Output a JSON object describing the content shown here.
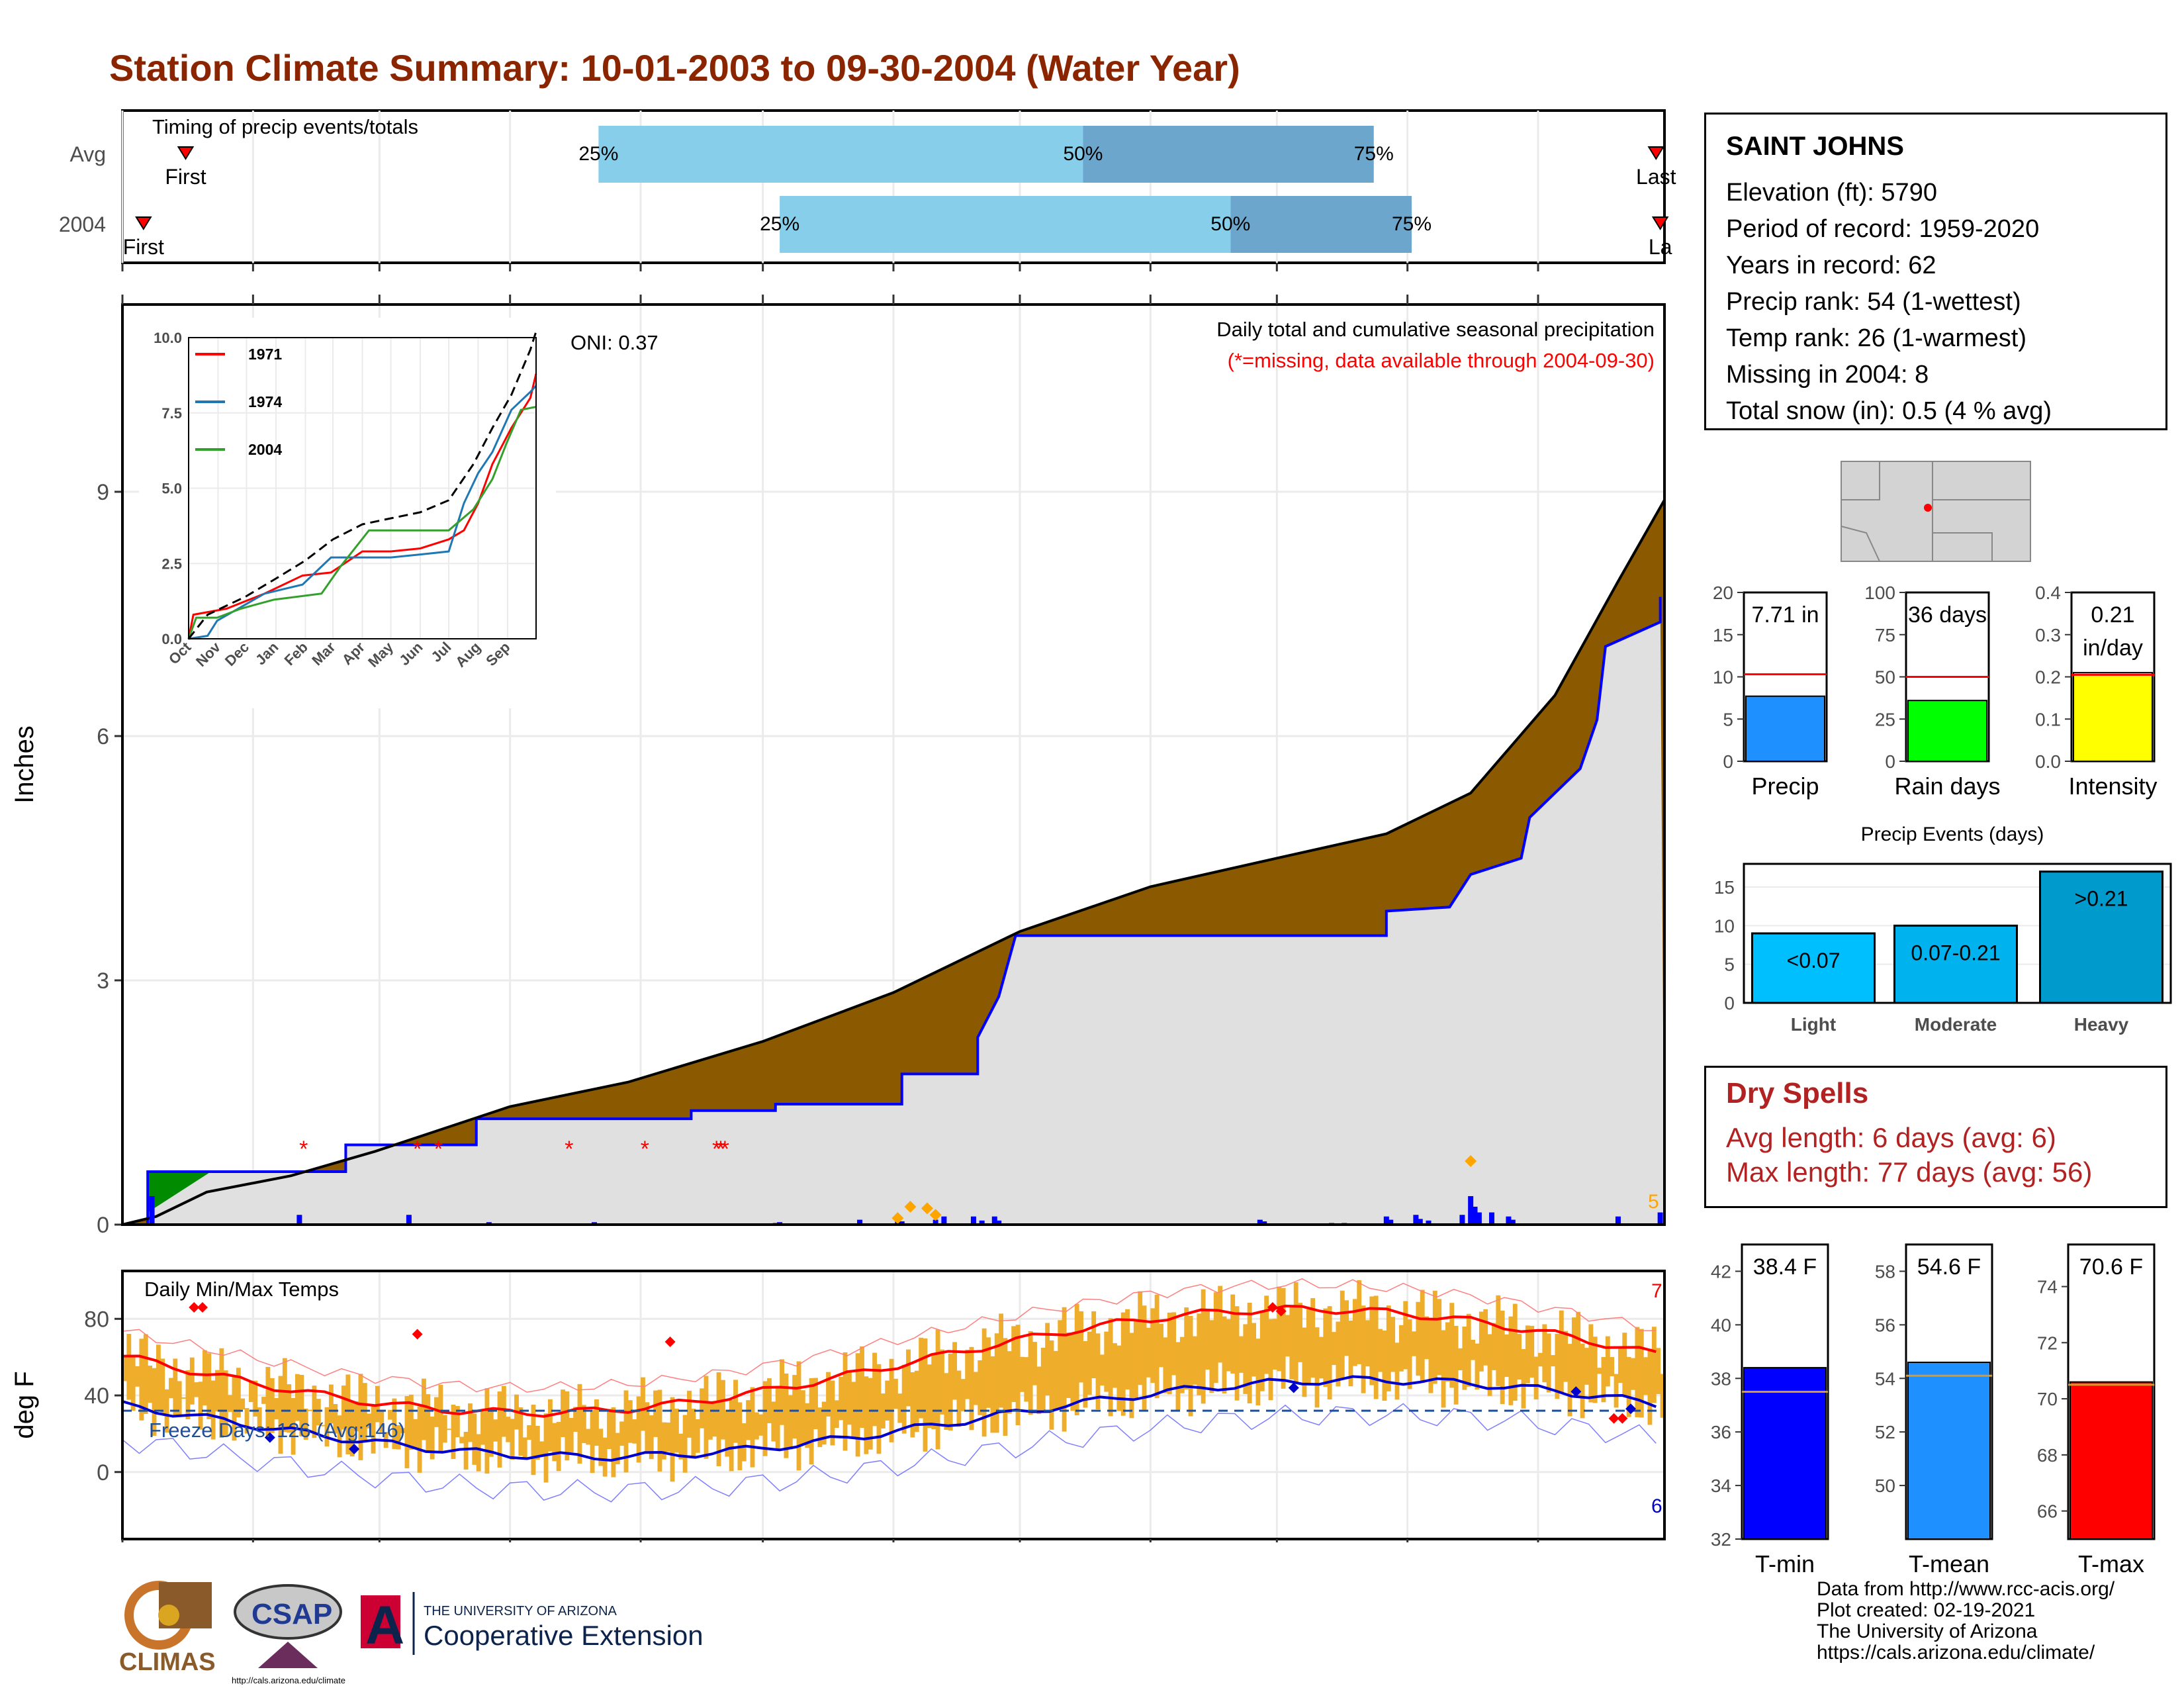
{
  "title": "Station Climate Summary: 10-01-2003 to 09-30-2004 (Water Year)",
  "station": {
    "name": "SAINT JOHNS",
    "lines": [
      "Elevation (ft): 5790",
      "Period of record: 1959-2020",
      "Years in record: 62",
      "Precip rank: 54 (1-wettest)",
      "Temp rank: 26 (1-warmest)",
      "Missing in 2004: 8",
      "Total snow (in): 0.5 (4 % avg)"
    ]
  },
  "timing": {
    "title": "Timing of precip events/totals",
    "rows": [
      {
        "label": "Avg",
        "first_label": "First",
        "last_label": "Last",
        "first_day": 15,
        "last_day": 364,
        "p25_day": 113,
        "p50_day": 228,
        "p75_day": 297,
        "p25_label": "25%",
        "p50_label": "50%",
        "p75_label": "75%"
      },
      {
        "label": "2004",
        "first_label": "First",
        "last_label": "La",
        "first_day": 5,
        "last_day": 365,
        "p25_day": 156,
        "p50_day": 263,
        "p75_day": 306,
        "p25_label": "25%",
        "p50_label": "50%",
        "p75_label": "75%"
      }
    ],
    "colors": {
      "light": "#87CEEB",
      "dark": "#6CA6CD",
      "marker": "#FF0000"
    }
  },
  "months": [
    "Oct",
    "Nov",
    "Dec",
    "Jan",
    "Feb",
    "Mar",
    "Apr",
    "May",
    "Jun",
    "Jul",
    "Aug",
    "Sep"
  ],
  "precip_panel": {
    "ylabel": "Inches",
    "yticks": [
      "0",
      "3",
      "6",
      "9"
    ],
    "label1": "Daily total and cumulative seasonal precipitation",
    "label2": "(*=missing, data available through 2004-09-30)",
    "oni": "ONI: 0.37",
    "corner_count": "5",
    "colors": {
      "avg_fill": "#8B5A00",
      "obs_line": "#0000FF",
      "above_fill": "#008B00",
      "base_fill": "#E0E0E0",
      "missing": "#FF0000",
      "extreme": "#FFA500"
    }
  },
  "inset": {
    "yticks": [
      "0.0",
      "2.5",
      "5.0",
      "7.5",
      "10.0"
    ],
    "xticks": [
      "Oct",
      "Nov",
      "Dec",
      "Jan",
      "Feb",
      "Mar",
      "Apr",
      "May",
      "Jun",
      "Jul",
      "Aug",
      "Sep"
    ],
    "legend": [
      {
        "name": "1971",
        "color": "#FF0000"
      },
      {
        "name": "1974",
        "color": "#1F78B4"
      },
      {
        "name": "2004",
        "color": "#33A02C"
      }
    ]
  },
  "temp_panel": {
    "ylabel": "deg F",
    "title": "Daily Min/Max Temps",
    "freeze": "Freeze Days: 126 (Avg:146)",
    "yticks": [
      "0",
      "40",
      "80"
    ],
    "count_high": "7",
    "count_low": "6",
    "colors": {
      "bars": "#EEAD2A",
      "max_line": "#FF0000",
      "min_line": "#0000CD",
      "freeze": "#1F4E9A"
    }
  },
  "gauges_precip": [
    {
      "label": "Precip",
      "value_text": "7.71 in",
      "value": 7.71,
      "avg": 10.3,
      "max": 20,
      "ticks": [
        "0",
        "5",
        "10",
        "15",
        "20"
      ],
      "color": "#1E90FF"
    },
    {
      "label": "Rain days",
      "value_text": "36 days",
      "value": 36,
      "avg": 50,
      "max": 100,
      "ticks": [
        "0",
        "25",
        "50",
        "75",
        "100"
      ],
      "color": "#00FF00"
    },
    {
      "label": "Intensity",
      "value_text": "0.21 in/day",
      "value_line1": "0.21",
      "value_line2": "in/day",
      "value": 0.21,
      "avg": 0.205,
      "max": 0.4,
      "ticks": [
        "0.0",
        "0.1",
        "0.2",
        "0.3",
        "0.4"
      ],
      "color": "#FFFF00"
    }
  ],
  "precip_events": {
    "title": "Precip Events (days)",
    "categories": [
      "Light",
      "Moderate",
      "Heavy"
    ],
    "values": [
      9,
      10,
      17
    ],
    "bar_labels": [
      "<0.07",
      "0.07-0.21",
      ">0.21"
    ],
    "yticks": [
      "0",
      "5",
      "10",
      "15"
    ],
    "ylim": [
      0,
      18
    ],
    "colors": [
      "#00BFFF",
      "#00B2EE",
      "#009ACD"
    ]
  },
  "dry_spells": {
    "title": "Dry Spells",
    "avg": "Avg length: 6 days (avg: 6)",
    "max": "Max length: 77 days (avg: 56)"
  },
  "gauges_temp": [
    {
      "label": "T-min",
      "value_text": "38.4 F",
      "value": 38.4,
      "avg": 37.5,
      "min": 32,
      "max": 43,
      "ticks": [
        "32",
        "34",
        "36",
        "38",
        "40",
        "42"
      ],
      "color": "#0000FF"
    },
    {
      "label": "T-mean",
      "value_text": "54.6 F",
      "value": 54.6,
      "avg": 54.1,
      "min": 48,
      "max": 59,
      "ticks": [
        "50",
        "52",
        "54",
        "56",
        "58"
      ],
      "color": "#1E90FF"
    },
    {
      "label": "T-max",
      "value_text": "70.6 F",
      "value": 70.6,
      "avg": 70.5,
      "min": 65,
      "max": 75.5,
      "ticks": [
        "66",
        "68",
        "70",
        "72",
        "74"
      ],
      "color": "#FF0000"
    }
  ],
  "credits": [
    "Data from http://www.rcc-acis.org/",
    "Plot created: 02-19-2021",
    "The University of Arizona",
    "https://cals.arizona.edu/climate/"
  ],
  "logos": {
    "climas": "CLIMAS",
    "csap": "CSAP",
    "csap_url": "http://cals.arizona.edu/climate",
    "ua_small": "THE UNIVERSITY OF ARIZONA",
    "ua_big": "Cooperative Extension"
  }
}
